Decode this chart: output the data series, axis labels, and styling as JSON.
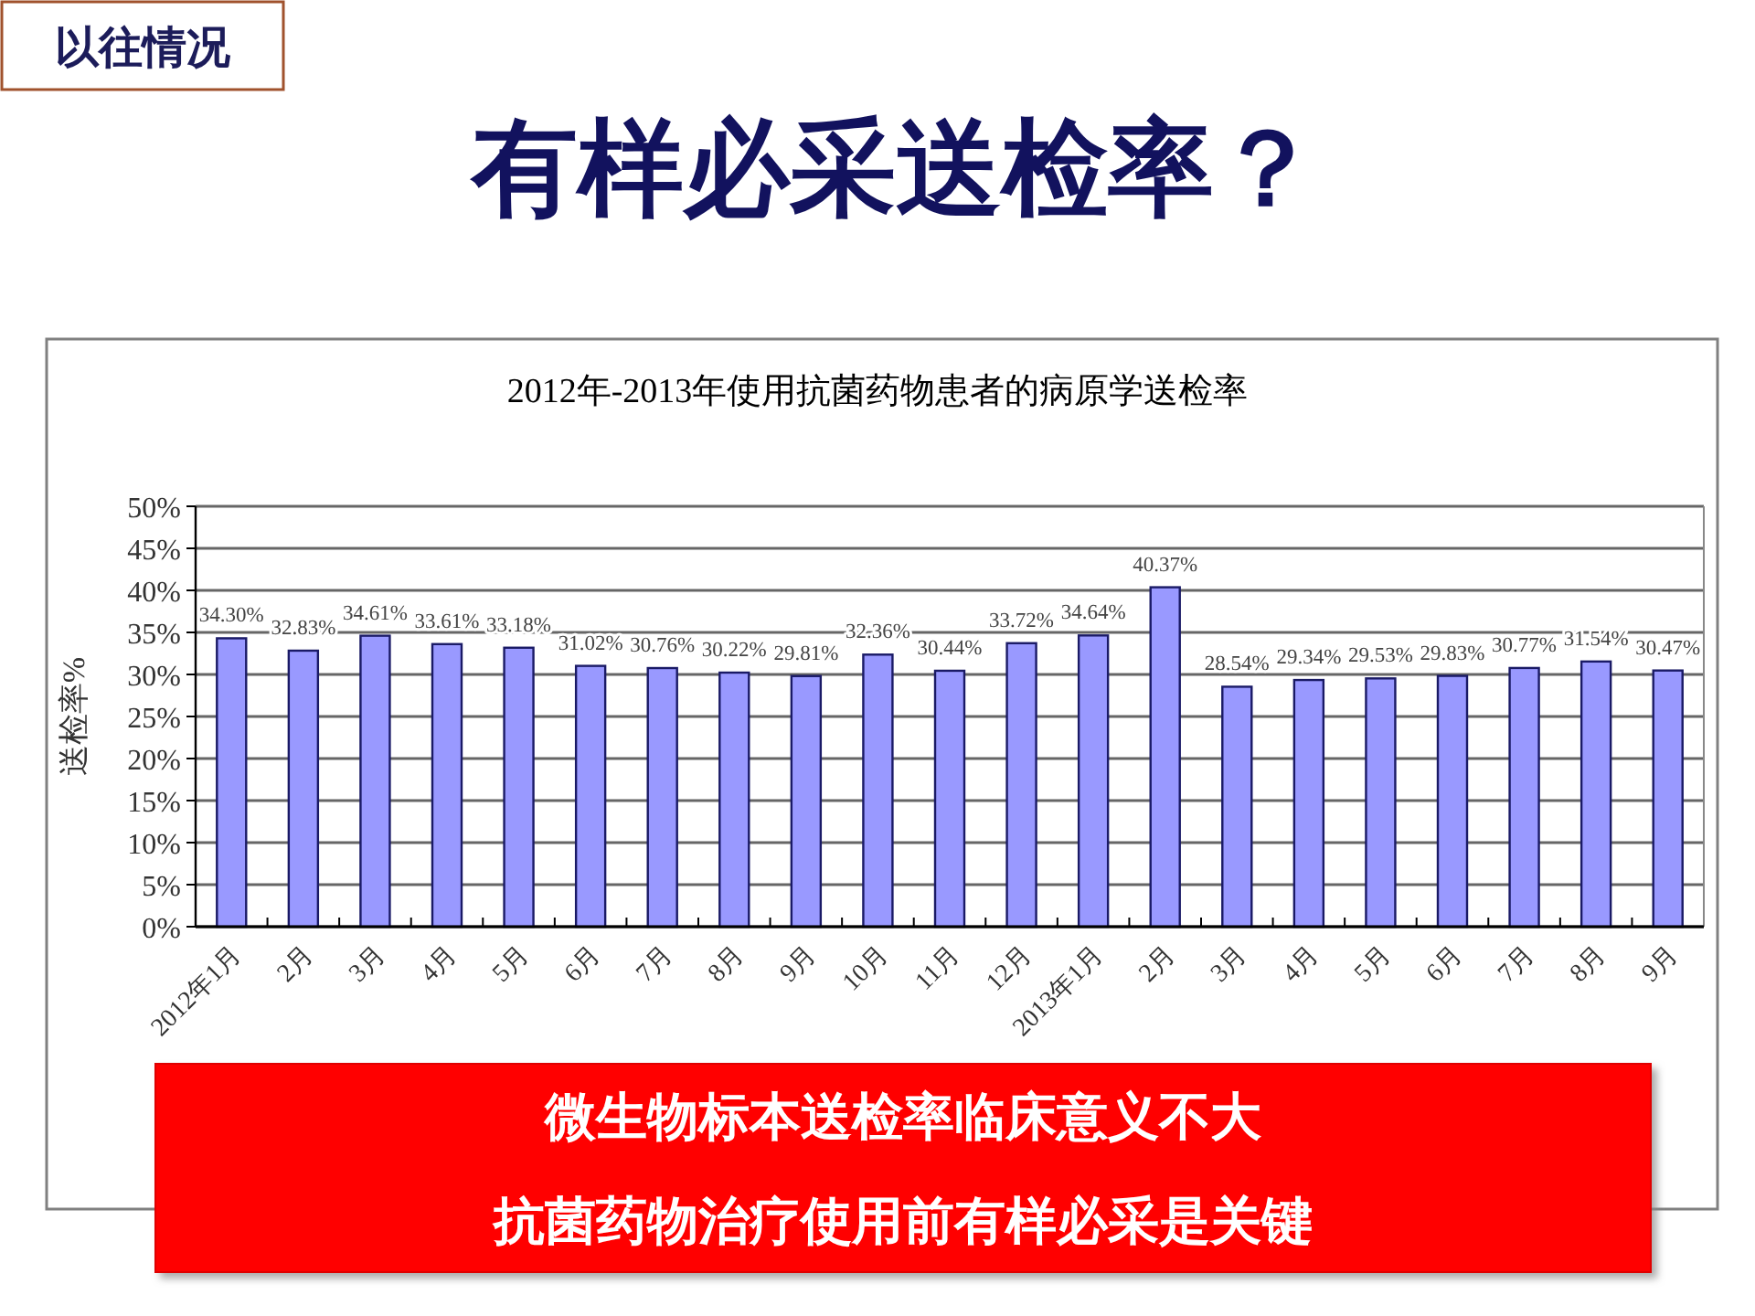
{
  "chart_data": {
    "type": "bar",
    "title": "有样必采送检率？",
    "subtitle": "2012年-2013年使用抗菌药物患者的病原学送检率",
    "ylabel": "送检率%",
    "categories": [
      "2012年1月",
      "2月",
      "3月",
      "4月",
      "5月",
      "6月",
      "7月",
      "8月",
      "9月",
      "10月",
      "11月",
      "12月",
      "2013年1月",
      "2月",
      "3月",
      "4月",
      "5月",
      "6月",
      "7月",
      "8月",
      "9月"
    ],
    "values": [
      34.3,
      32.83,
      34.61,
      33.61,
      33.18,
      31.02,
      30.76,
      30.22,
      29.81,
      32.36,
      30.44,
      33.72,
      34.64,
      40.37,
      28.54,
      29.34,
      29.53,
      29.83,
      30.77,
      31.54,
      30.47
    ],
    "value_labels": [
      "34.30%",
      "32.83%",
      "34.61%",
      "33.61%",
      "33.18%",
      "31.02%",
      "30.76%",
      "30.22%",
      "29.81%",
      "32.36%",
      "30.44%",
      "33.72%",
      "34.64%",
      "40.37%",
      "28.54%",
      "29.34%",
      "29.53%",
      "29.83%",
      "30.77%",
      "31.54%",
      "30.47%"
    ],
    "color": "#9999ff",
    "ylim": [
      0,
      50
    ],
    "yticks": [
      {
        "value": 0,
        "label": "0%"
      },
      {
        "value": 5,
        "label": "5%"
      },
      {
        "value": 10,
        "label": "10%"
      },
      {
        "value": 15,
        "label": "15%"
      },
      {
        "value": 20,
        "label": "20%"
      },
      {
        "value": 25,
        "label": "25%"
      },
      {
        "value": 30,
        "label": "30%"
      },
      {
        "value": 35,
        "label": "35%"
      },
      {
        "value": 40,
        "label": "40%"
      },
      {
        "value": 45,
        "label": "45%"
      },
      {
        "value": 50,
        "label": "50%"
      }
    ],
    "grid": "y",
    "annotations": [
      "以往情况",
      "微生物标本送检率临床意义不大",
      "抗菌药物治疗使用前有样必采是关键"
    ]
  }
}
